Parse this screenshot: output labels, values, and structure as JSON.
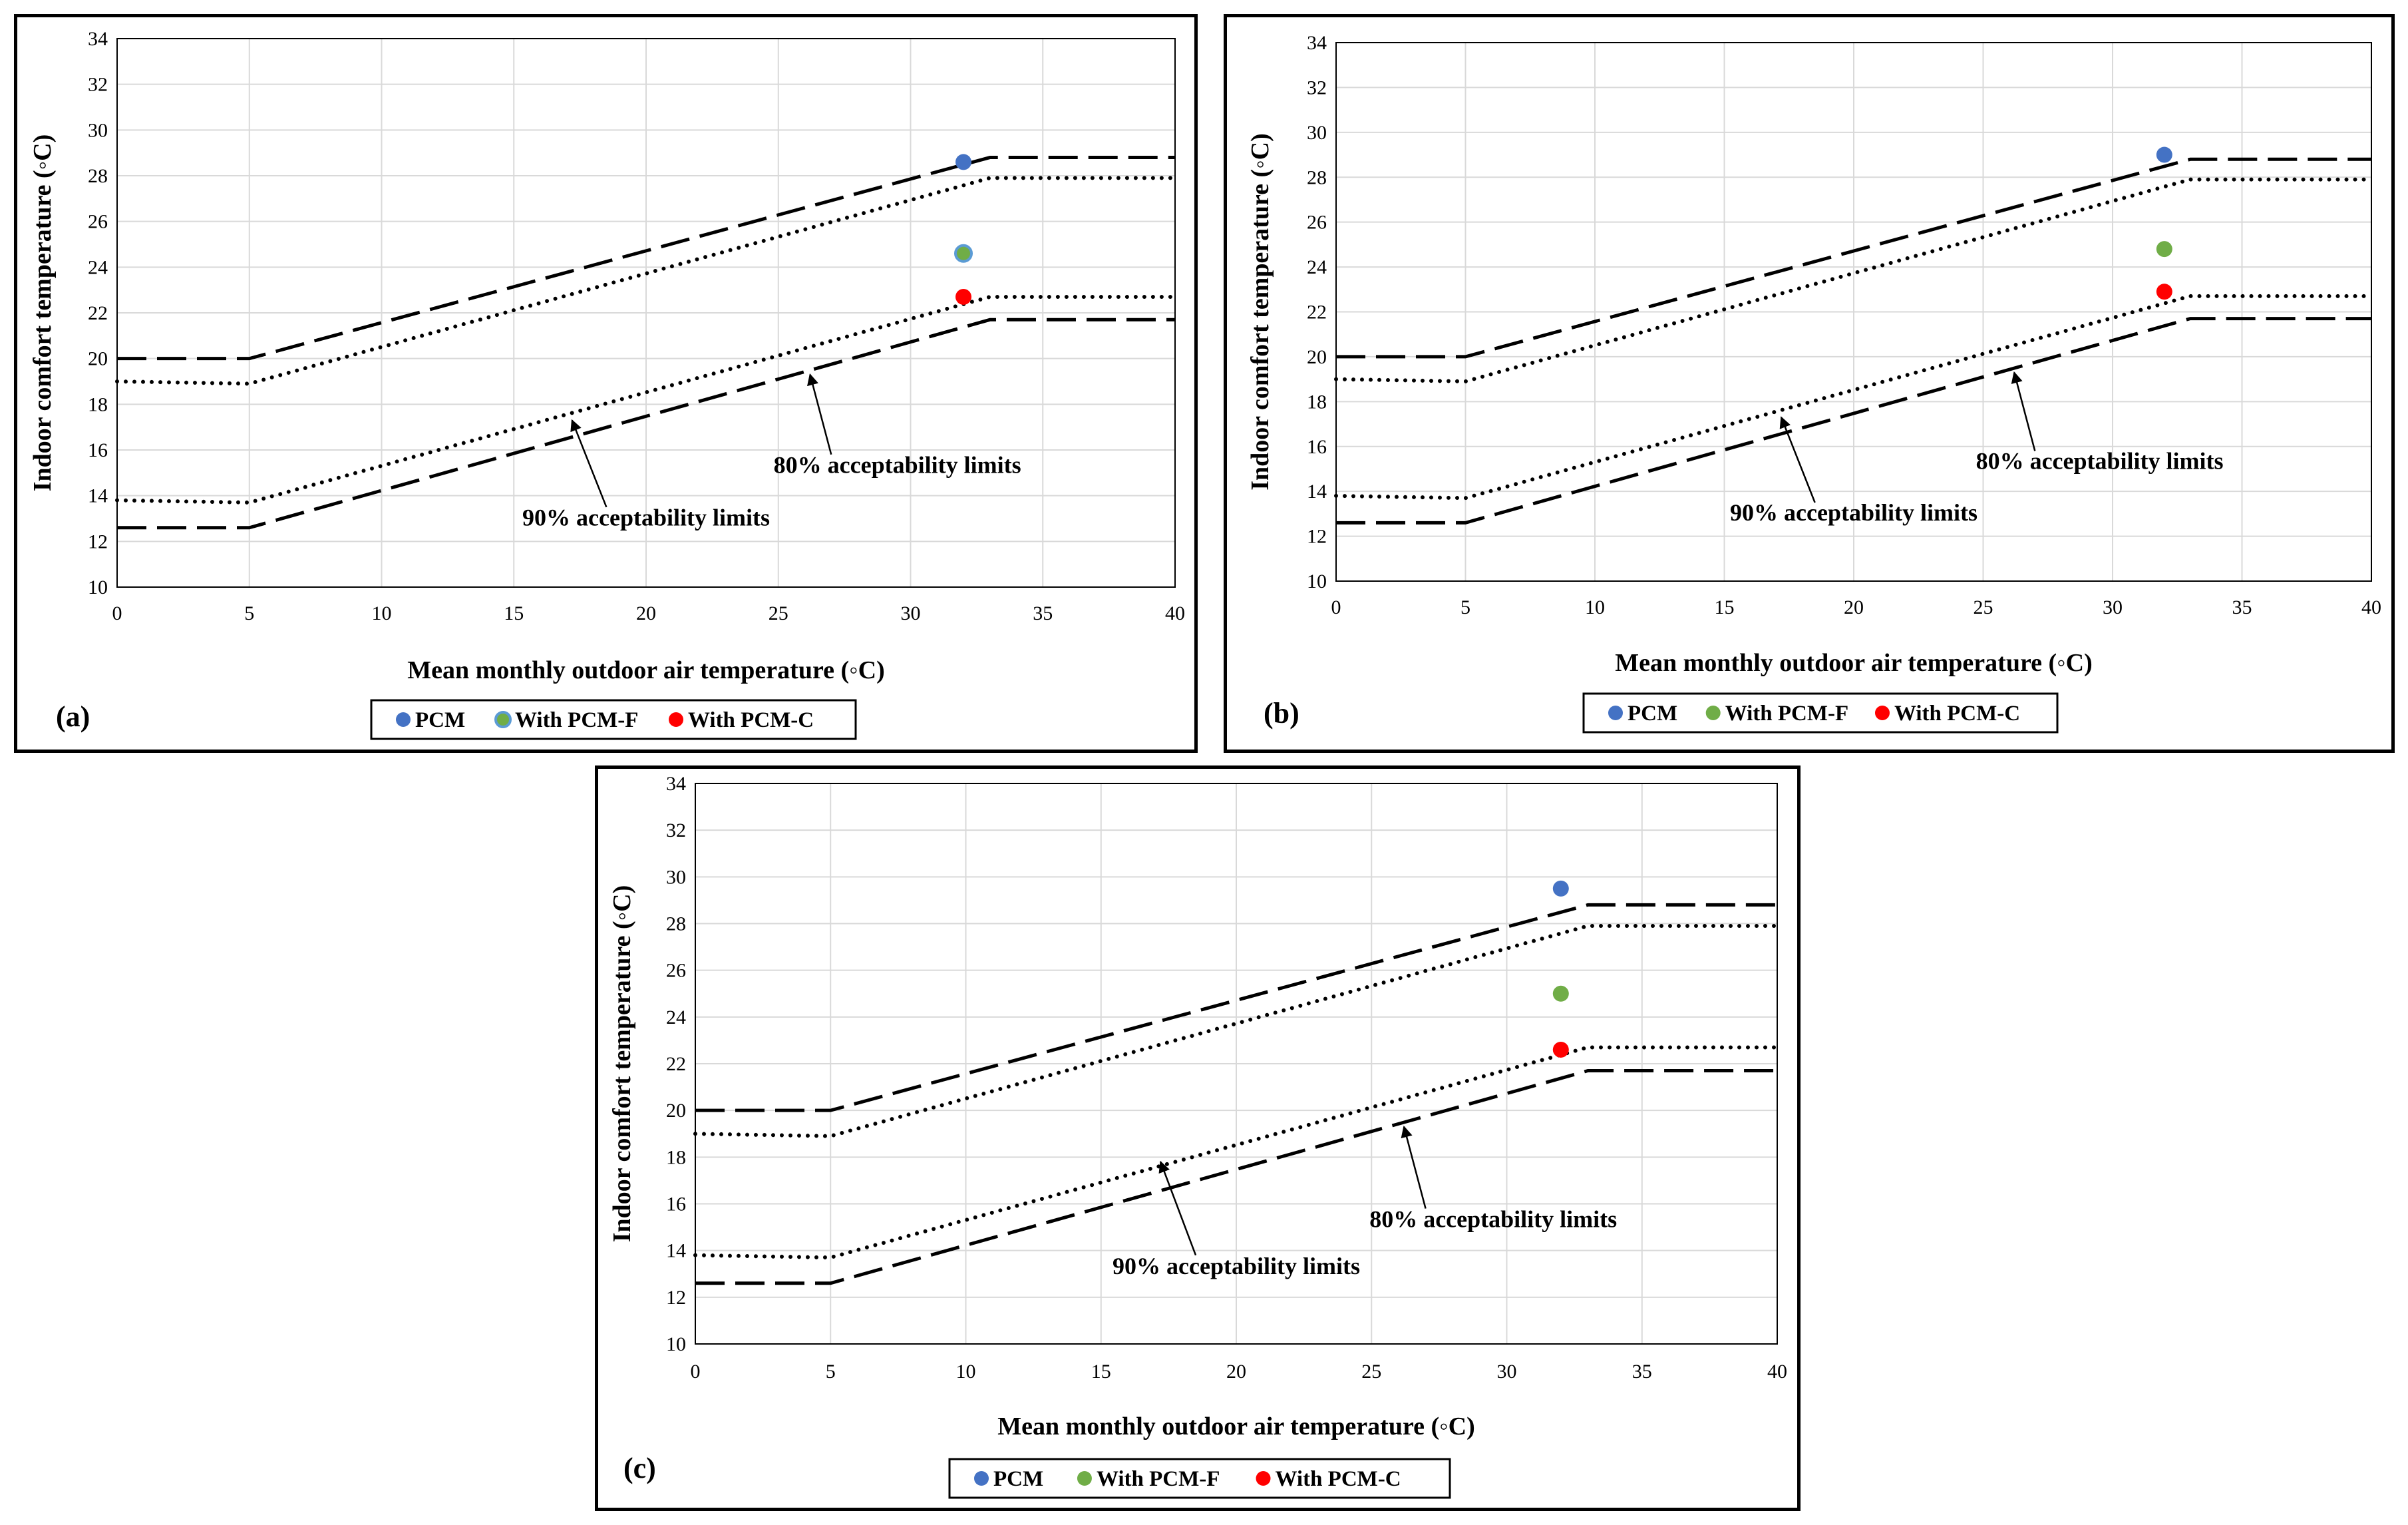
{
  "chart_data": [
    {
      "type": "line",
      "panel_label": "(a)",
      "xlabel": "Mean monthly outdoor air temperature (◦C)",
      "ylabel": "Indoor comfort temperature (◦C)",
      "xlim": [
        0,
        40
      ],
      "ylim": [
        10,
        34
      ],
      "x_ticks": [
        0,
        5,
        10,
        15,
        20,
        25,
        30,
        35,
        40
      ],
      "y_ticks": [
        10,
        12,
        14,
        16,
        18,
        20,
        22,
        24,
        26,
        28,
        30,
        32,
        34
      ],
      "grid": true,
      "legend_position": "bottom",
      "series": [
        {
          "style": "dashed",
          "x": [
            0,
            5,
            33,
            40
          ],
          "y": [
            20.0,
            20.0,
            28.8,
            28.8
          ]
        },
        {
          "style": "dotted",
          "x": [
            0,
            5,
            33,
            40
          ],
          "y": [
            19.0,
            18.9,
            27.9,
            27.9
          ]
        },
        {
          "style": "dotted",
          "x": [
            0,
            5,
            33,
            40
          ],
          "y": [
            13.8,
            13.7,
            22.7,
            22.7
          ]
        },
        {
          "style": "dashed",
          "x": [
            0,
            5,
            33,
            40
          ],
          "y": [
            12.6,
            12.6,
            21.7,
            21.7
          ]
        }
      ],
      "points": [
        {
          "name": "PCM",
          "color": "#4472c4",
          "x": 32,
          "y": 28.6
        },
        {
          "name": "With PCM-F",
          "color": "#70ad47",
          "stroke": "#5b9bd5",
          "x": 32,
          "y": 24.6
        },
        {
          "name": "With PCM-C",
          "color": "#ff0000",
          "x": 32,
          "y": 22.7
        }
      ],
      "annotations": [
        {
          "text": "80% acceptability limits",
          "label_x": 29.5,
          "label_y": 15.0,
          "arrow_from": [
            27.0,
            15.8
          ],
          "arrow_to": [
            26.2,
            19.3
          ]
        },
        {
          "text": "90% acceptability limits",
          "label_x": 20.0,
          "label_y": 12.7,
          "arrow_from": [
            18.5,
            13.5
          ],
          "arrow_to": [
            17.2,
            17.3
          ]
        }
      ]
    },
    {
      "type": "line",
      "panel_label": "(b)",
      "xlabel": "Mean monthly outdoor air temperature (◦C)",
      "ylabel": "Indoor comfort temperature (◦C)",
      "xlim": [
        0,
        40
      ],
      "ylim": [
        10,
        34
      ],
      "x_ticks": [
        0,
        5,
        10,
        15,
        20,
        25,
        30,
        35,
        40
      ],
      "y_ticks": [
        10,
        12,
        14,
        16,
        18,
        20,
        22,
        24,
        26,
        28,
        30,
        32,
        34
      ],
      "grid": true,
      "legend_position": "bottom",
      "series": [
        {
          "style": "dashed",
          "x": [
            0,
            5,
            33,
            40
          ],
          "y": [
            20.0,
            20.0,
            28.8,
            28.8
          ]
        },
        {
          "style": "dotted",
          "x": [
            0,
            5,
            33,
            40
          ],
          "y": [
            19.0,
            18.9,
            27.9,
            27.9
          ]
        },
        {
          "style": "dotted",
          "x": [
            0,
            5,
            33,
            40
          ],
          "y": [
            13.8,
            13.7,
            22.7,
            22.7
          ]
        },
        {
          "style": "dashed",
          "x": [
            0,
            5,
            33,
            40
          ],
          "y": [
            12.6,
            12.6,
            21.7,
            21.7
          ]
        }
      ],
      "points": [
        {
          "name": "PCM",
          "color": "#4472c4",
          "x": 32,
          "y": 29.0
        },
        {
          "name": "With PCM-F",
          "color": "#70ad47",
          "x": 32,
          "y": 24.8
        },
        {
          "name": "With PCM-C",
          "color": "#ff0000",
          "x": 32,
          "y": 22.9
        }
      ],
      "annotations": [
        {
          "text": "80% acceptability limits",
          "label_x": 29.5,
          "label_y": 15.0,
          "arrow_from": [
            27.0,
            15.8
          ],
          "arrow_to": [
            26.2,
            19.3
          ]
        },
        {
          "text": "90% acceptability limits",
          "label_x": 20.0,
          "label_y": 12.7,
          "arrow_from": [
            18.5,
            13.5
          ],
          "arrow_to": [
            17.2,
            17.3
          ]
        }
      ]
    },
    {
      "type": "line",
      "panel_label": "(c)",
      "xlabel": "Mean monthly outdoor air temperature (◦C)",
      "ylabel": "Indoor comfort temperature (◦C)",
      "xlim": [
        0,
        40
      ],
      "ylim": [
        10,
        34
      ],
      "x_ticks": [
        0,
        5,
        10,
        15,
        20,
        25,
        30,
        35,
        40
      ],
      "y_ticks": [
        10,
        12,
        14,
        16,
        18,
        20,
        22,
        24,
        26,
        28,
        30,
        32,
        34
      ],
      "grid": true,
      "legend_position": "bottom",
      "series": [
        {
          "style": "dashed",
          "x": [
            0,
            5,
            33,
            40
          ],
          "y": [
            20.0,
            20.0,
            28.8,
            28.8
          ]
        },
        {
          "style": "dotted",
          "x": [
            0,
            5,
            33,
            40
          ],
          "y": [
            19.0,
            18.9,
            27.9,
            27.9
          ]
        },
        {
          "style": "dotted",
          "x": [
            0,
            5,
            33,
            40
          ],
          "y": [
            13.8,
            13.7,
            22.7,
            22.7
          ]
        },
        {
          "style": "dashed",
          "x": [
            0,
            5,
            33,
            40
          ],
          "y": [
            12.6,
            12.6,
            21.7,
            21.7
          ]
        }
      ],
      "points": [
        {
          "name": "PCM",
          "color": "#4472c4",
          "x": 32,
          "y": 29.5
        },
        {
          "name": "With PCM-F",
          "color": "#70ad47",
          "x": 32,
          "y": 25.0
        },
        {
          "name": "With PCM-C",
          "color": "#ff0000",
          "x": 32,
          "y": 22.6
        }
      ],
      "annotations": [
        {
          "text": "80% acceptability limits",
          "label_x": 29.5,
          "label_y": 15.0,
          "arrow_from": [
            27.0,
            15.8
          ],
          "arrow_to": [
            26.2,
            19.3
          ]
        },
        {
          "text": "90% acceptability limits",
          "label_x": 20.0,
          "label_y": 13.0,
          "arrow_from": [
            18.5,
            13.8
          ],
          "arrow_to": [
            17.2,
            17.8
          ]
        }
      ]
    }
  ]
}
